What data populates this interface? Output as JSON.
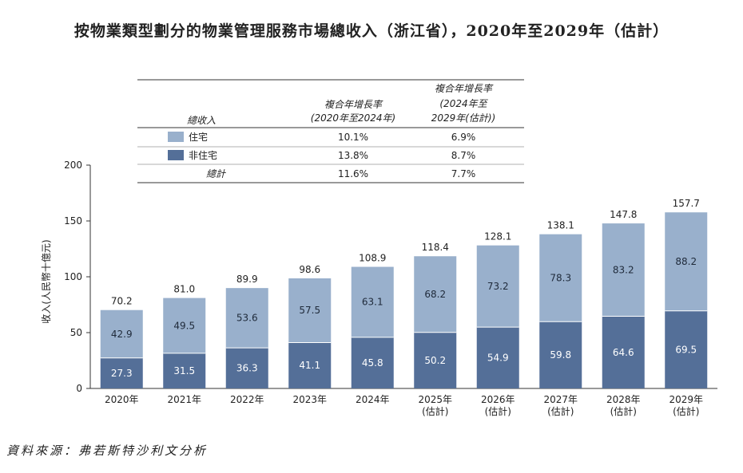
{
  "title": "按物業類型劃分的物業管理服務市場總收入（浙江省），2020年至2029年（估計）",
  "source": "資料來源：弗若斯特沙利文分析",
  "colors": {
    "residential": "#99b0cc",
    "non_residential": "#546f98",
    "axis": "#333333"
  },
  "table": {
    "row_header": "總收入",
    "col1_header": [
      "複合年增長率",
      "(2020年至2024年)"
    ],
    "col2_header": [
      "複合年增長率",
      "(2024年至",
      "2029年(估計))"
    ],
    "rows": [
      {
        "label": "住宅",
        "swatch": "residential",
        "c1": "10.1%",
        "c2": "6.9%"
      },
      {
        "label": "非住宅",
        "swatch": "non_residential",
        "c1": "13.8%",
        "c2": "8.7%"
      },
      {
        "label": "總計",
        "swatch": "",
        "c1": "11.6%",
        "c2": "7.7%"
      }
    ]
  },
  "chart_data": {
    "type": "bar",
    "stacked": true,
    "ylabel": "收入(人民幣十億元)",
    "ylim": [
      0,
      200
    ],
    "yticks": [
      "0",
      "50",
      "100",
      "150",
      "200"
    ],
    "categories": [
      [
        "2020年"
      ],
      [
        "2021年"
      ],
      [
        "2022年"
      ],
      [
        "2023年"
      ],
      [
        "2024年"
      ],
      [
        "2025年",
        "(估計)"
      ],
      [
        "2026年",
        "(估計)"
      ],
      [
        "2027年",
        "(估計)"
      ],
      [
        "2028年",
        "(估計)"
      ],
      [
        "2029年",
        "(估計)"
      ]
    ],
    "series": [
      {
        "name": "非住宅",
        "values": [
          27.3,
          31.5,
          36.3,
          41.1,
          45.8,
          50.2,
          54.9,
          59.8,
          64.6,
          69.5
        ]
      },
      {
        "name": "住宅",
        "values": [
          42.9,
          49.5,
          53.6,
          57.5,
          63.1,
          68.2,
          73.2,
          78.3,
          83.2,
          88.2
        ]
      }
    ],
    "totals": [
      70.2,
      81.0,
      89.9,
      98.6,
      108.9,
      118.4,
      128.1,
      138.1,
      147.8,
      157.7
    ],
    "total_labels": [
      "70.2",
      "81.0",
      "89.9",
      "98.6",
      "108.9",
      "118.4",
      "128.1",
      "138.1",
      "147.8",
      "157.7"
    ]
  }
}
